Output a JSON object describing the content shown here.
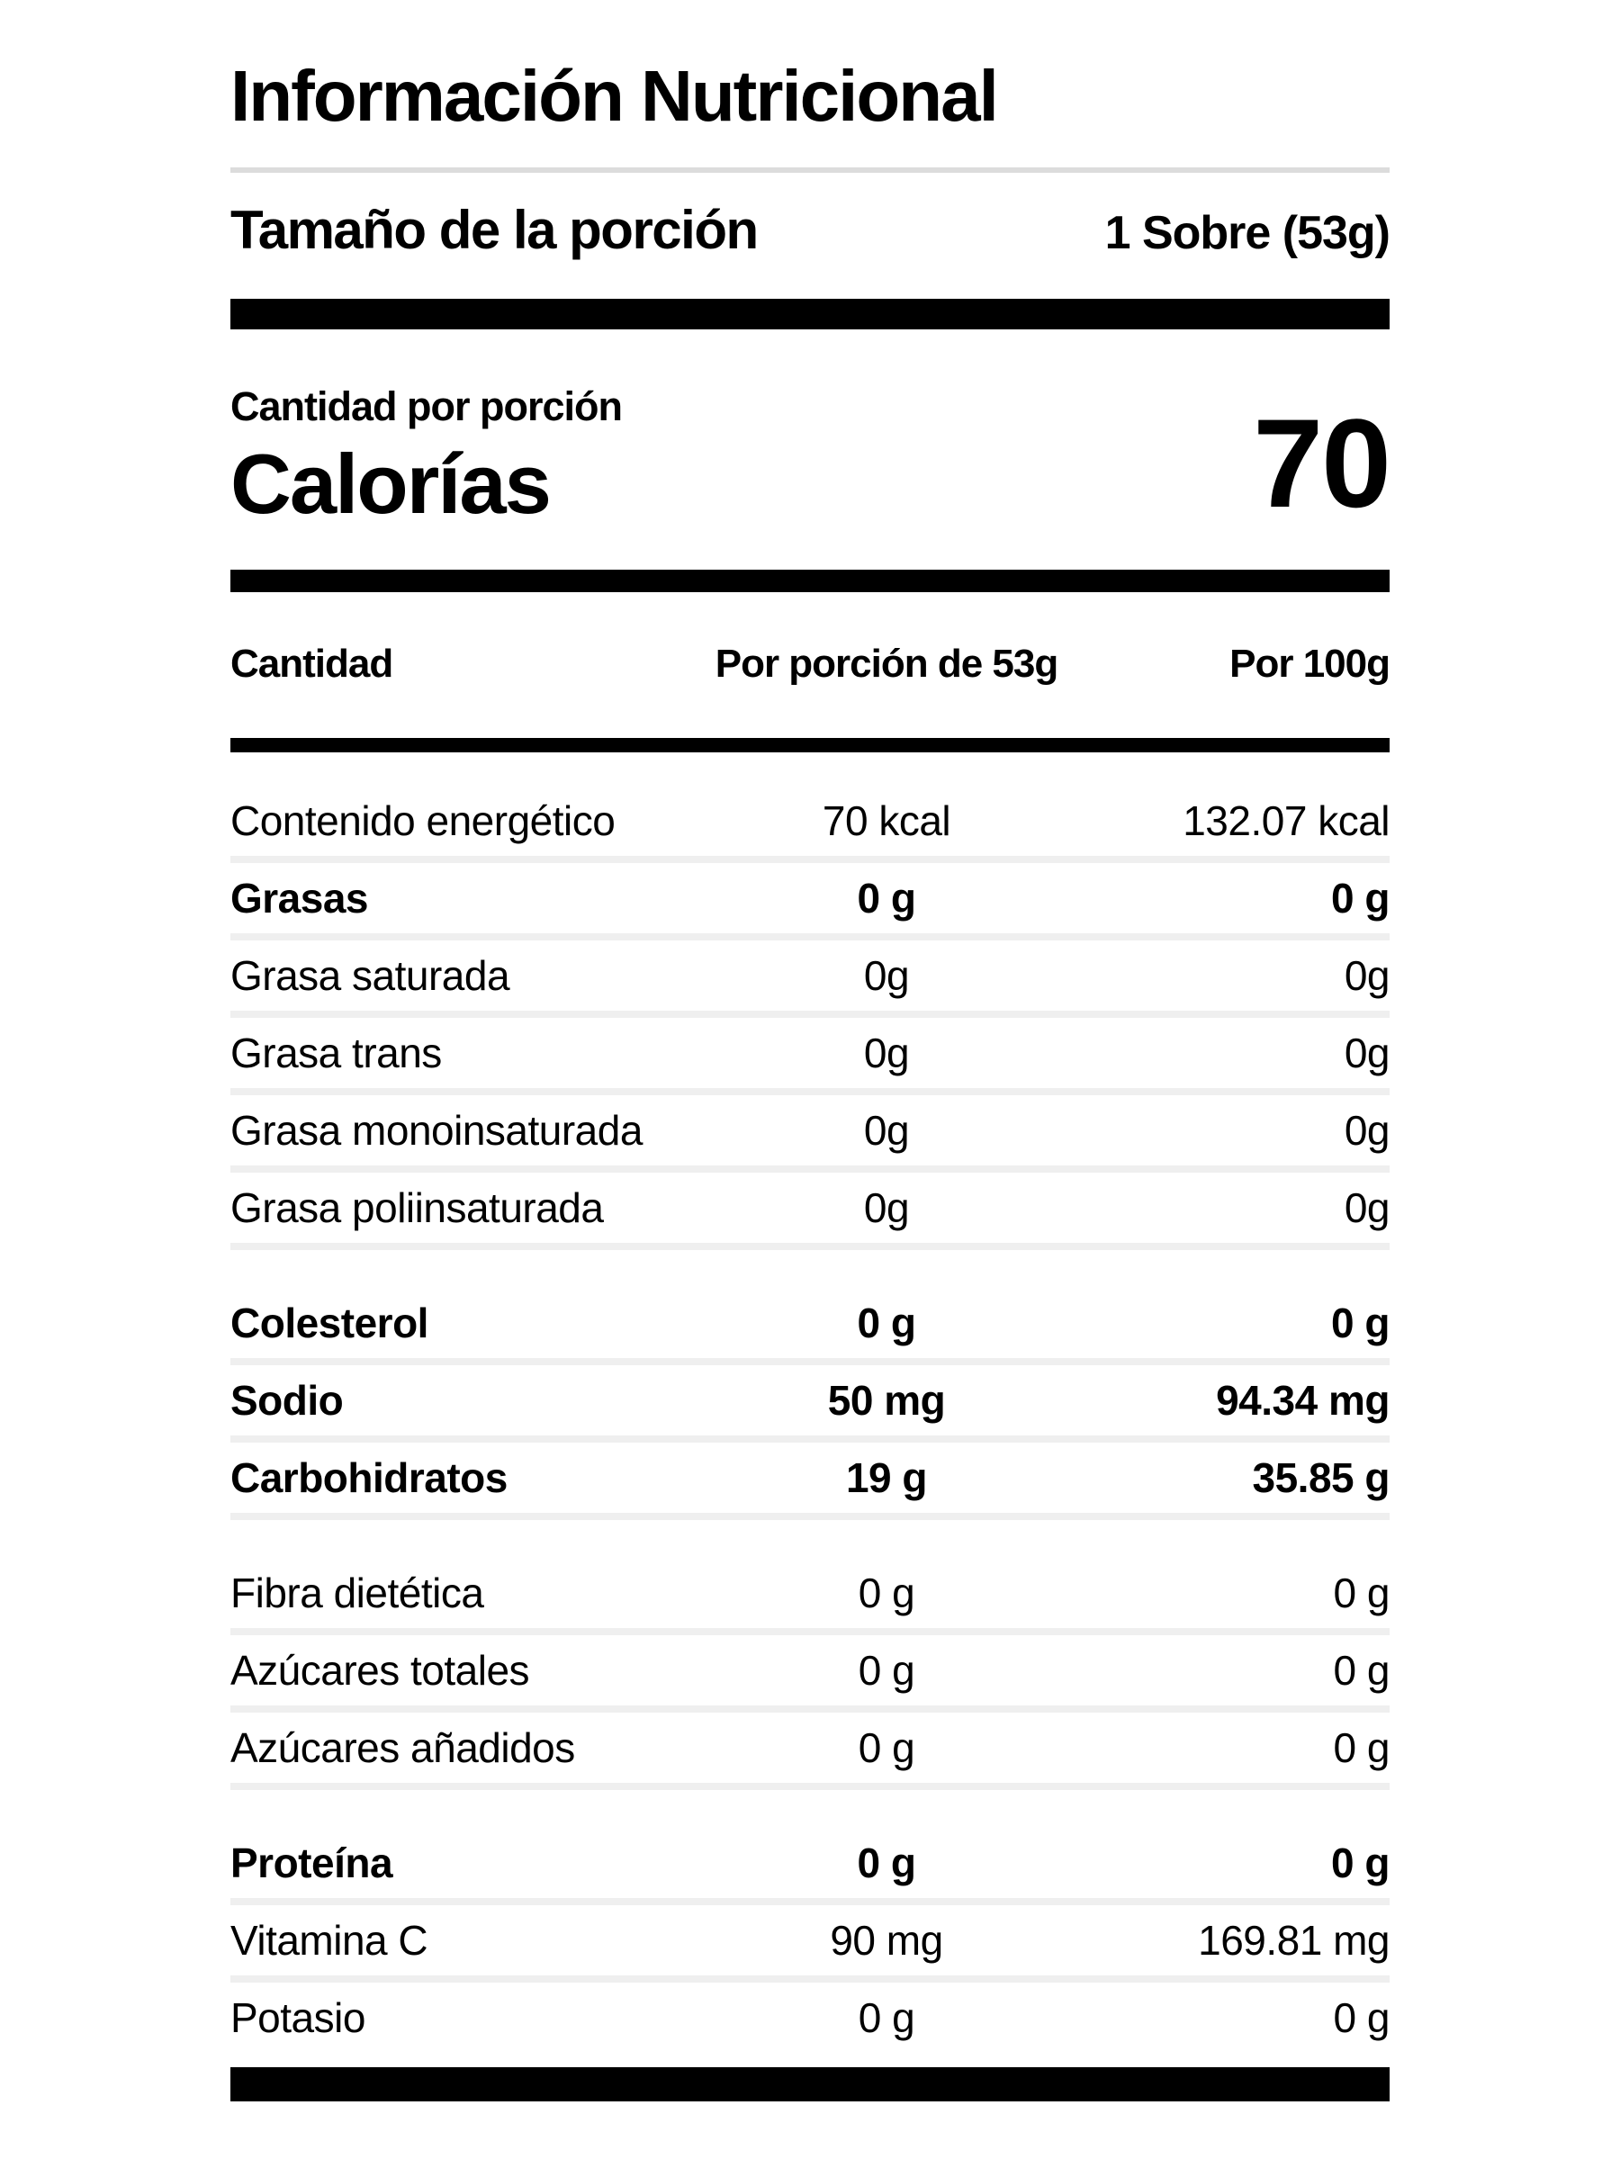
{
  "header": {
    "title": "Información Nutricional",
    "serving_size_label": "Tamaño de la porción",
    "serving_size_value": "1 Sobre (53g)"
  },
  "calories": {
    "amount_per_serving_label": "Cantidad por porción",
    "calories_label": "Calorías",
    "calories_value": "70"
  },
  "table": {
    "columns": [
      "Cantidad",
      "Por porción de 53g",
      "Por 100g"
    ],
    "rows": [
      {
        "label": "Contenido energético",
        "per_serving": "70 kcal",
        "per_100g": "132.07 kcal",
        "bold": false,
        "group_start": false,
        "separator_after": true
      },
      {
        "label": "Grasas",
        "per_serving": "0 g",
        "per_100g": "0 g",
        "bold": true,
        "group_start": false,
        "separator_after": true
      },
      {
        "label": "Grasa saturada",
        "per_serving": "0g",
        "per_100g": "0g",
        "bold": false,
        "group_start": false,
        "separator_after": true
      },
      {
        "label": "Grasa trans",
        "per_serving": "0g",
        "per_100g": "0g",
        "bold": false,
        "group_start": false,
        "separator_after": true
      },
      {
        "label": "Grasa monoinsaturada",
        "per_serving": "0g",
        "per_100g": "0g",
        "bold": false,
        "group_start": false,
        "separator_after": true
      },
      {
        "label": "Grasa poliinsaturada",
        "per_serving": "0g",
        "per_100g": "0g",
        "bold": false,
        "group_start": false,
        "separator_after": true
      },
      {
        "label": "Colesterol",
        "per_serving": "0 g",
        "per_100g": "0 g",
        "bold": true,
        "group_start": true,
        "separator_after": true
      },
      {
        "label": "Sodio",
        "per_serving": "50 mg",
        "per_100g": "94.34 mg",
        "bold": true,
        "group_start": false,
        "separator_after": true
      },
      {
        "label": "Carbohidratos",
        "per_serving": "19 g",
        "per_100g": "35.85 g",
        "bold": true,
        "group_start": false,
        "separator_after": true
      },
      {
        "label": "Fibra dietética",
        "per_serving": "0 g",
        "per_100g": "0 g",
        "bold": false,
        "group_start": true,
        "separator_after": true
      },
      {
        "label": "Azúcares totales",
        "per_serving": "0 g",
        "per_100g": "0 g",
        "bold": false,
        "group_start": false,
        "separator_after": true
      },
      {
        "label": "Azúcares añadidos",
        "per_serving": "0 g",
        "per_100g": "0 g",
        "bold": false,
        "group_start": false,
        "separator_after": true
      },
      {
        "label": "Proteína",
        "per_serving": "0 g",
        "per_100g": "0 g",
        "bold": true,
        "group_start": true,
        "separator_after": true
      },
      {
        "label": "Vitamina C",
        "per_serving": "90 mg",
        "per_100g": "169.81 mg",
        "bold": false,
        "group_start": false,
        "separator_after": true
      },
      {
        "label": "Potasio",
        "per_serving": "0 g",
        "per_100g": "0 g",
        "bold": false,
        "group_start": false,
        "separator_after": false
      }
    ]
  },
  "colors": {
    "background": "#ffffff",
    "text": "#000000",
    "divider_bar": "#000000",
    "row_separator": "#efefef",
    "title_rule": "#dcdcdc"
  }
}
